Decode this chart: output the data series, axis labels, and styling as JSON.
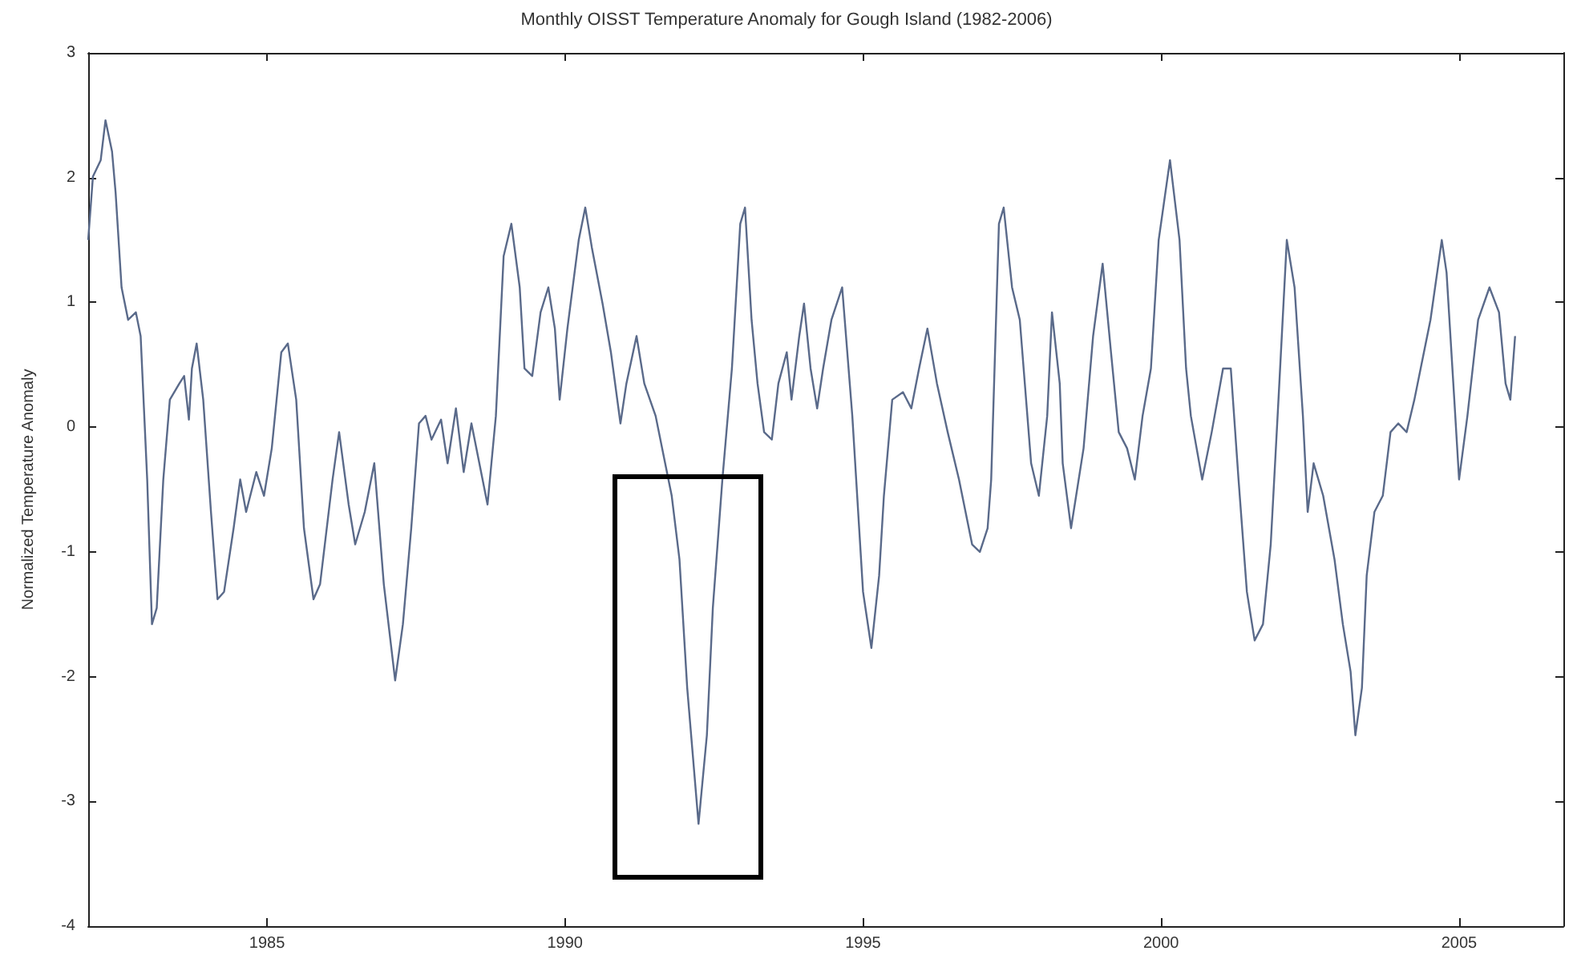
{
  "chart_data": {
    "type": "line",
    "title": "Monthly OISST Temperature Anomaly for Gough Island (1982-2006)",
    "ylabel": "Normalized Temperature Anomaly",
    "xlim": [
      1982,
      2006.75
    ],
    "xticks": [
      1985,
      1990,
      1995,
      2000,
      2005
    ],
    "ylim": [
      -4,
      3
    ],
    "yticks": [
      -4,
      -3,
      -2,
      -1,
      0,
      1,
      2,
      3
    ],
    "grid": false,
    "marker": "none",
    "line_style": "solid",
    "series": [
      {
        "color": "#5a6a8a",
        "x": [
          1982.0,
          1982.08,
          1982.21,
          1982.29,
          1982.4,
          1982.46,
          1982.56,
          1982.67,
          1982.8,
          1982.88,
          1982.99,
          1983.07,
          1983.15,
          1983.26,
          1983.37,
          1983.53,
          1983.61,
          1983.69,
          1983.74,
          1983.82,
          1983.93,
          1984.06,
          1984.17,
          1984.28,
          1984.44,
          1984.55,
          1984.65,
          1984.82,
          1984.95,
          1985.08,
          1985.24,
          1985.35,
          1985.49,
          1985.62,
          1985.78,
          1985.89,
          1986.1,
          1986.21,
          1986.37,
          1986.48,
          1986.64,
          1986.8,
          1986.96,
          1987.15,
          1987.28,
          1987.42,
          1987.55,
          1987.66,
          1987.76,
          1987.92,
          1988.03,
          1988.17,
          1988.3,
          1988.43,
          1988.7,
          1988.84,
          1988.97,
          1989.1,
          1989.24,
          1989.32,
          1989.45,
          1989.59,
          1989.72,
          1989.83,
          1989.91,
          1990.04,
          1990.23,
          1990.34,
          1990.45,
          1990.63,
          1990.77,
          1990.93,
          1991.03,
          1991.2,
          1991.33,
          1991.52,
          1991.68,
          1991.79,
          1991.92,
          1992.05,
          1992.24,
          1992.38,
          1992.48,
          1992.64,
          1992.8,
          1992.94,
          1993.02,
          1993.13,
          1993.23,
          1993.34,
          1993.47,
          1993.58,
          1993.72,
          1993.8,
          1993.93,
          1994.01,
          1994.12,
          1994.23,
          1994.33,
          1994.47,
          1994.65,
          1994.82,
          1995.0,
          1995.14,
          1995.27,
          1995.35,
          1995.49,
          1995.67,
          1995.81,
          1995.94,
          1996.08,
          1996.24,
          1996.42,
          1996.61,
          1996.83,
          1996.96,
          1997.09,
          1997.15,
          1997.28,
          1997.36,
          1997.5,
          1997.63,
          1997.82,
          1997.95,
          1998.09,
          1998.17,
          1998.3,
          1998.35,
          1998.49,
          1998.7,
          1998.86,
          1999.02,
          1999.16,
          1999.29,
          1999.43,
          1999.56,
          1999.69,
          1999.83,
          1999.96,
          2000.15,
          2000.31,
          2000.42,
          2000.5,
          2000.69,
          2000.85,
          2001.04,
          2001.17,
          2001.3,
          2001.44,
          2001.57,
          2001.71,
          2001.84,
          2001.97,
          2002.11,
          2002.24,
          2002.38,
          2002.46,
          2002.56,
          2002.72,
          2002.91,
          2003.05,
          2003.18,
          2003.26,
          2003.37,
          2003.45,
          2003.58,
          2003.72,
          2003.85,
          2003.98,
          2004.12,
          2004.25,
          2004.52,
          2004.71,
          2004.79,
          2004.92,
          2005.0,
          2005.14,
          2005.32,
          2005.51,
          2005.67,
          2005.78,
          2005.86,
          2005.94
        ],
        "values": [
          1.5,
          2.01,
          2.14,
          2.46,
          2.21,
          1.88,
          1.12,
          0.86,
          0.92,
          0.73,
          -0.42,
          -1.58,
          -1.45,
          -0.42,
          0.22,
          0.35,
          0.41,
          0.06,
          0.47,
          0.67,
          0.22,
          -0.68,
          -1.38,
          -1.32,
          -0.81,
          -0.42,
          -0.68,
          -0.36,
          -0.55,
          -0.17,
          0.6,
          0.67,
          0.22,
          -0.81,
          -1.38,
          -1.26,
          -0.42,
          -0.04,
          -0.62,
          -0.94,
          -0.68,
          -0.29,
          -1.26,
          -2.03,
          -1.58,
          -0.81,
          0.03,
          0.09,
          -0.1,
          0.06,
          -0.29,
          0.15,
          -0.36,
          0.03,
          -0.62,
          0.09,
          1.37,
          1.63,
          1.12,
          0.47,
          0.41,
          0.92,
          1.12,
          0.79,
          0.22,
          0.79,
          1.5,
          1.76,
          1.44,
          0.99,
          0.6,
          0.03,
          0.35,
          0.73,
          0.35,
          0.09,
          -0.29,
          -0.55,
          -1.06,
          -2.09,
          -3.18,
          -2.47,
          -1.45,
          -0.42,
          0.47,
          1.63,
          1.76,
          0.86,
          0.35,
          -0.04,
          -0.1,
          0.35,
          0.6,
          0.22,
          0.73,
          0.99,
          0.47,
          0.15,
          0.47,
          0.86,
          1.12,
          0.09,
          -1.32,
          -1.77,
          -1.19,
          -0.55,
          0.22,
          0.28,
          0.15,
          0.47,
          0.79,
          0.35,
          -0.04,
          -0.42,
          -0.94,
          -1.0,
          -0.81,
          -0.42,
          1.63,
          1.76,
          1.12,
          0.86,
          -0.29,
          -0.55,
          0.09,
          0.92,
          0.35,
          -0.29,
          -0.81,
          -0.17,
          0.73,
          1.31,
          0.6,
          -0.04,
          -0.17,
          -0.42,
          0.09,
          0.47,
          1.5,
          2.14,
          1.5,
          0.47,
          0.09,
          -0.42,
          -0.04,
          0.47,
          0.47,
          -0.42,
          -1.32,
          -1.71,
          -1.58,
          -0.94,
          0.22,
          1.5,
          1.12,
          0.09,
          -0.68,
          -0.29,
          -0.55,
          -1.06,
          -1.58,
          -1.96,
          -2.47,
          -2.09,
          -1.19,
          -0.68,
          -0.55,
          -0.04,
          0.03,
          -0.04,
          0.22,
          0.86,
          1.5,
          1.24,
          0.22,
          -0.42,
          0.09,
          0.86,
          1.12,
          0.92,
          0.35,
          0.22,
          0.73
        ]
      }
    ]
  }
}
